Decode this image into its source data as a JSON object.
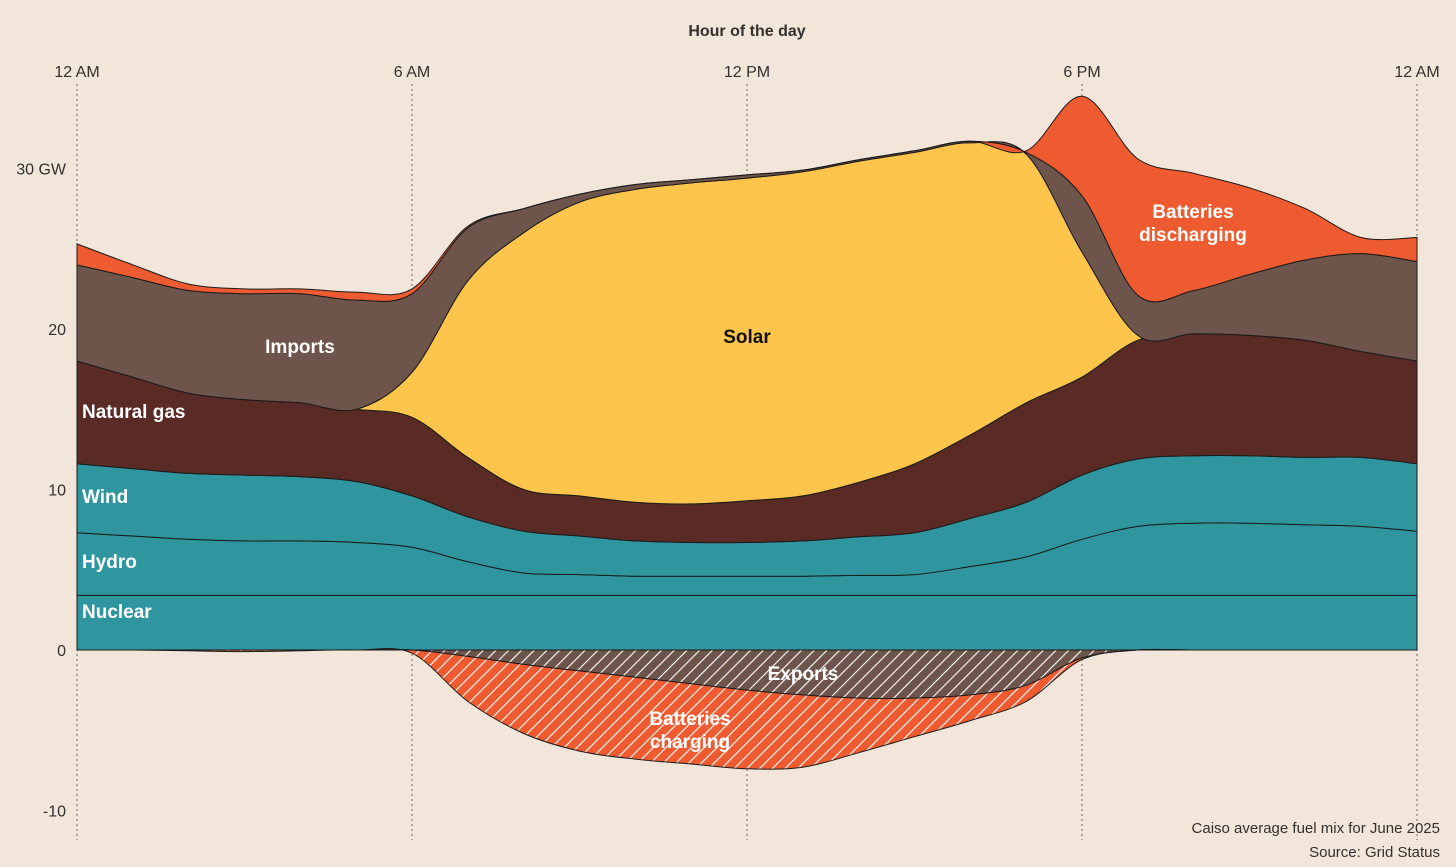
{
  "chart_data": {
    "type": "area",
    "title": "",
    "xlabel": "Hour of the day",
    "ylabel": "",
    "x_ticks": [
      "12 AM",
      "6 AM",
      "12 PM",
      "6 PM",
      "12 AM"
    ],
    "x_range": [
      0,
      24
    ],
    "ylim": [
      -11,
      33
    ],
    "y_ticks": [
      {
        "value": 30,
        "label": "30 GW"
      },
      {
        "value": 20,
        "label": "20"
      },
      {
        "value": 10,
        "label": "10"
      },
      {
        "value": 0,
        "label": "0"
      },
      {
        "value": -10,
        "label": "-10"
      }
    ],
    "grid": false,
    "x": [
      0,
      1,
      2,
      3,
      4,
      5,
      6,
      7,
      8,
      9,
      10,
      11,
      12,
      13,
      14,
      15,
      16,
      17,
      18,
      19,
      20,
      21,
      22,
      23,
      24
    ],
    "series": [
      {
        "name": "Nuclear",
        "color": "#2f969f",
        "stack": "positive",
        "values": [
          3.4,
          3.4,
          3.4,
          3.4,
          3.4,
          3.4,
          3.4,
          3.4,
          3.4,
          3.4,
          3.4,
          3.4,
          3.4,
          3.4,
          3.4,
          3.4,
          3.4,
          3.4,
          3.4,
          3.4,
          3.4,
          3.4,
          3.4,
          3.4,
          3.4
        ]
      },
      {
        "name": "Hydro",
        "color": "#2f969f",
        "stack": "positive",
        "values": [
          3.9,
          3.7,
          3.5,
          3.4,
          3.4,
          3.3,
          3.0,
          2.1,
          1.4,
          1.3,
          1.2,
          1.2,
          1.2,
          1.2,
          1.25,
          1.3,
          1.8,
          2.4,
          3.5,
          4.3,
          4.5,
          4.5,
          4.4,
          4.3,
          4.0
        ]
      },
      {
        "name": "Wind",
        "color": "#2f969f",
        "stack": "positive",
        "values": [
          4.3,
          4.2,
          4.1,
          4.1,
          4.0,
          3.8,
          3.2,
          2.8,
          2.6,
          2.4,
          2.2,
          2.1,
          2.1,
          2.2,
          2.4,
          2.6,
          3.0,
          3.4,
          4.0,
          4.2,
          4.2,
          4.2,
          4.2,
          4.3,
          4.2
        ]
      },
      {
        "name": "Natural gas",
        "color": "#5a2a24",
        "stack": "positive",
        "values": [
          6.4,
          5.7,
          5.0,
          4.7,
          4.6,
          4.5,
          4.9,
          3.7,
          2.6,
          2.5,
          2.4,
          2.4,
          2.6,
          2.8,
          3.4,
          4.3,
          5.2,
          6.2,
          6.1,
          7.4,
          7.6,
          7.5,
          7.3,
          6.6,
          6.4
        ]
      },
      {
        "name": "Solar",
        "color": "#fdc54c",
        "stack": "positive",
        "values": [
          0,
          0,
          0,
          0,
          0,
          0,
          2.8,
          11.0,
          16.0,
          18.3,
          19.5,
          20.0,
          20.1,
          20.2,
          20.0,
          19.4,
          18.2,
          15.5,
          7.8,
          0.3,
          0,
          0,
          0,
          0,
          0
        ]
      },
      {
        "name": "Imports",
        "color": "#6e554c",
        "stack": "positive",
        "values": [
          6.0,
          6.2,
          6.4,
          6.6,
          6.8,
          6.8,
          4.9,
          3.3,
          1.5,
          0.5,
          0.3,
          0.2,
          0.2,
          0.1,
          0.1,
          0.1,
          0.1,
          0.1,
          3.5,
          2.5,
          2.7,
          3.8,
          5.0,
          6.1,
          6.2
        ]
      },
      {
        "name": "Batteries discharging",
        "color": "#ef5b30",
        "stack": "positive",
        "values": [
          1.3,
          0.8,
          0.4,
          0.3,
          0.3,
          0.5,
          0.3,
          0.1,
          0,
          0,
          0,
          0,
          0,
          0,
          0,
          0,
          0,
          0.1,
          6.2,
          8.5,
          7.3,
          5.4,
          3.2,
          1.0,
          1.5
        ]
      },
      {
        "name": "Exports",
        "color": "#6e554c",
        "stack": "negative",
        "hatched": true,
        "values": [
          0,
          0,
          0,
          0,
          0,
          0,
          0,
          -0.4,
          -0.9,
          -1.3,
          -1.7,
          -2.1,
          -2.5,
          -2.8,
          -3.0,
          -3.0,
          -2.8,
          -2.2,
          -0.5,
          0,
          0,
          0,
          0,
          0,
          0
        ]
      },
      {
        "name": "Batteries charging",
        "color": "#ef5b30",
        "stack": "negative",
        "hatched": true,
        "values": [
          0,
          0,
          -0.05,
          -0.1,
          -0.05,
          0,
          -0.2,
          -2.8,
          -4.3,
          -5.0,
          -5.1,
          -5.0,
          -4.9,
          -4.5,
          -3.4,
          -2.4,
          -1.6,
          -1.0,
          -0.1,
          0,
          0,
          0,
          0,
          0,
          0
        ]
      }
    ],
    "annotations": [
      {
        "text": "Imports",
        "series": "Imports",
        "color": "#ffffff"
      },
      {
        "text": "Solar",
        "series": "Solar",
        "color": "#111111"
      },
      {
        "text": "Natural gas",
        "series": "Natural gas",
        "color": "#ffffff"
      },
      {
        "text": "Wind",
        "series": "Wind",
        "color": "#ffffff"
      },
      {
        "text": "Hydro",
        "series": "Hydro",
        "color": "#ffffff"
      },
      {
        "text": "Nuclear",
        "series": "Nuclear",
        "color": "#ffffff"
      },
      {
        "text": "Exports",
        "series": "Exports",
        "color": "#ffffff"
      }
    ],
    "annotations_multiline": [
      {
        "lines": [
          "Batteries",
          "discharging"
        ],
        "series": "Batteries discharging",
        "color": "#ffffff"
      },
      {
        "lines": [
          "Batteries",
          "charging"
        ],
        "series": "Batteries charging",
        "color": "#ffffff"
      }
    ]
  },
  "footnote": {
    "caption": "Caiso average fuel mix for June 2025",
    "source": "Source: Grid Status"
  }
}
